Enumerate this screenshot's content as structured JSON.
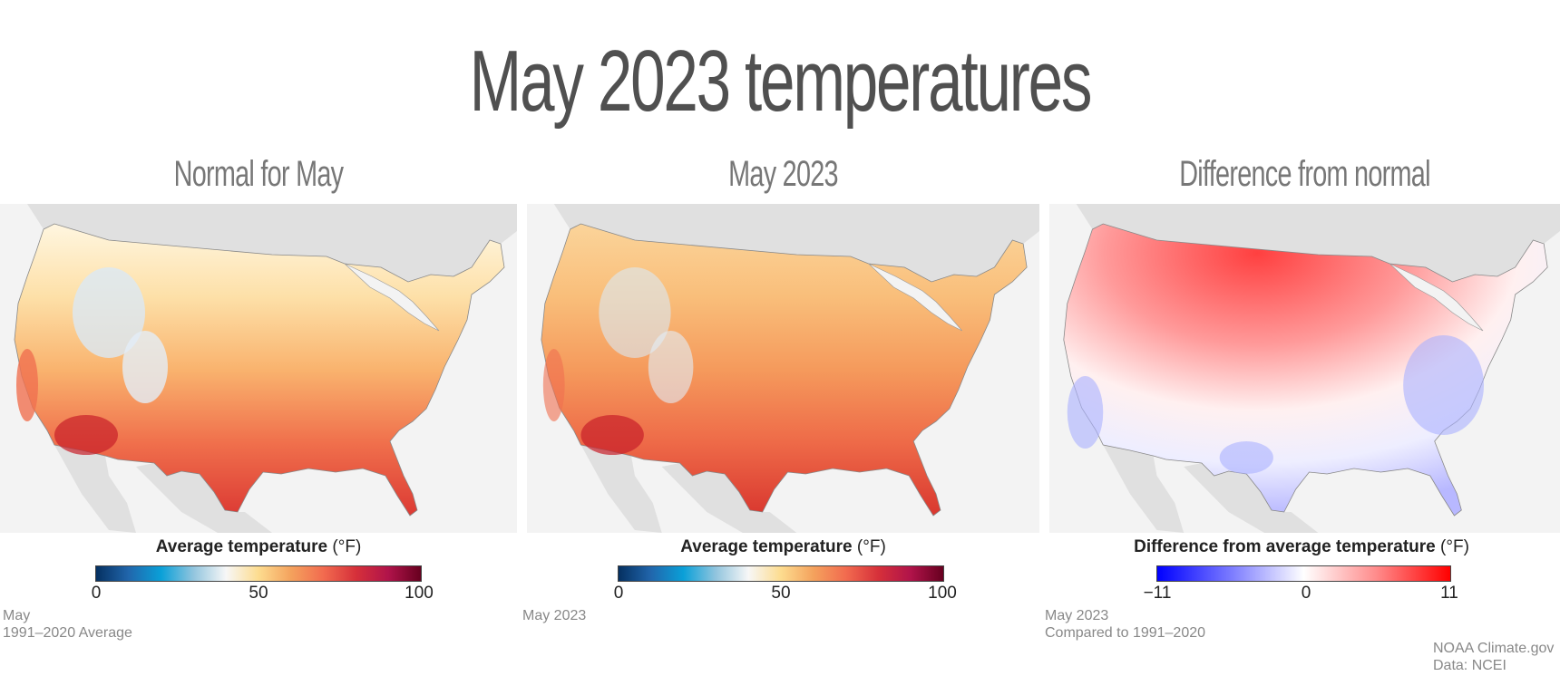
{
  "title": "May 2023 temperatures",
  "panels": [
    {
      "title": "Normal for May",
      "legend_title": "Average temperature",
      "legend_unit": "(°F)",
      "ticks": [
        "0",
        "50",
        "100"
      ],
      "colormap": [
        "#053061",
        "#2166ac",
        "#0aa0d8",
        "#92c5de",
        "#f7f7f7",
        "#fddc8f",
        "#f4a25d",
        "#f26b4f",
        "#d6303a",
        "#b0134a",
        "#67001f"
      ],
      "notes": [
        "May",
        "1991–2020 Average"
      ]
    },
    {
      "title": "May 2023",
      "legend_title": "Average temperature",
      "legend_unit": "(°F)",
      "ticks": [
        "0",
        "50",
        "100"
      ],
      "colormap": [
        "#053061",
        "#2166ac",
        "#0aa0d8",
        "#92c5de",
        "#f7f7f7",
        "#fddc8f",
        "#f4a25d",
        "#f26b4f",
        "#d6303a",
        "#b0134a",
        "#67001f"
      ],
      "notes": [
        "May 2023"
      ]
    },
    {
      "title": "Difference from normal",
      "legend_title": "Difference from average temperature",
      "legend_unit": "(°F)",
      "ticks": [
        "−11",
        "0",
        "11"
      ],
      "colormap": [
        "#0000ff",
        "#7a7aff",
        "#ffffff",
        "#ff8a8a",
        "#ff0000"
      ],
      "notes": [
        "May 2023",
        "Compared to 1991–2020"
      ]
    }
  ],
  "credits": [
    "NOAA Climate.gov",
    "Data: NCEI"
  ],
  "chart_data": [
    {
      "type": "heatmap",
      "title": "Normal for May",
      "region": "Contiguous United States",
      "variable": "Average temperature (°F)",
      "scale_range": [
        0,
        100
      ],
      "summary": "Coolest (below ~45°F) in high Rocky Mountain and Cascade terrain; mid-50s to 60s across northern tier; 70s–80s across the South and Desert Southwest, hottest in southern Arizona/California deserts and south Texas/Florida."
    },
    {
      "type": "heatmap",
      "title": "May 2023",
      "region": "Contiguous United States",
      "variable": "Average temperature (°F)",
      "scale_range": [
        0,
        100
      ],
      "summary": "Similar pattern to normal but warmer across the northern Plains and Northwest; hottest in desert Southwest, Texas and Gulf Coast."
    },
    {
      "type": "heatmap",
      "title": "Difference from normal",
      "region": "Contiguous United States",
      "variable": "Difference from average temperature (°F)",
      "scale_range": [
        -11,
        11
      ],
      "summary": "Strongly above normal (red) across the Northwest and northern Plains, especially Montana, the Dakotas and Minnesota; near normal across the southern Plains; below normal (blue) across coastal California and the Southeast/Mid-Atlantic and Ohio Valley."
    }
  ]
}
